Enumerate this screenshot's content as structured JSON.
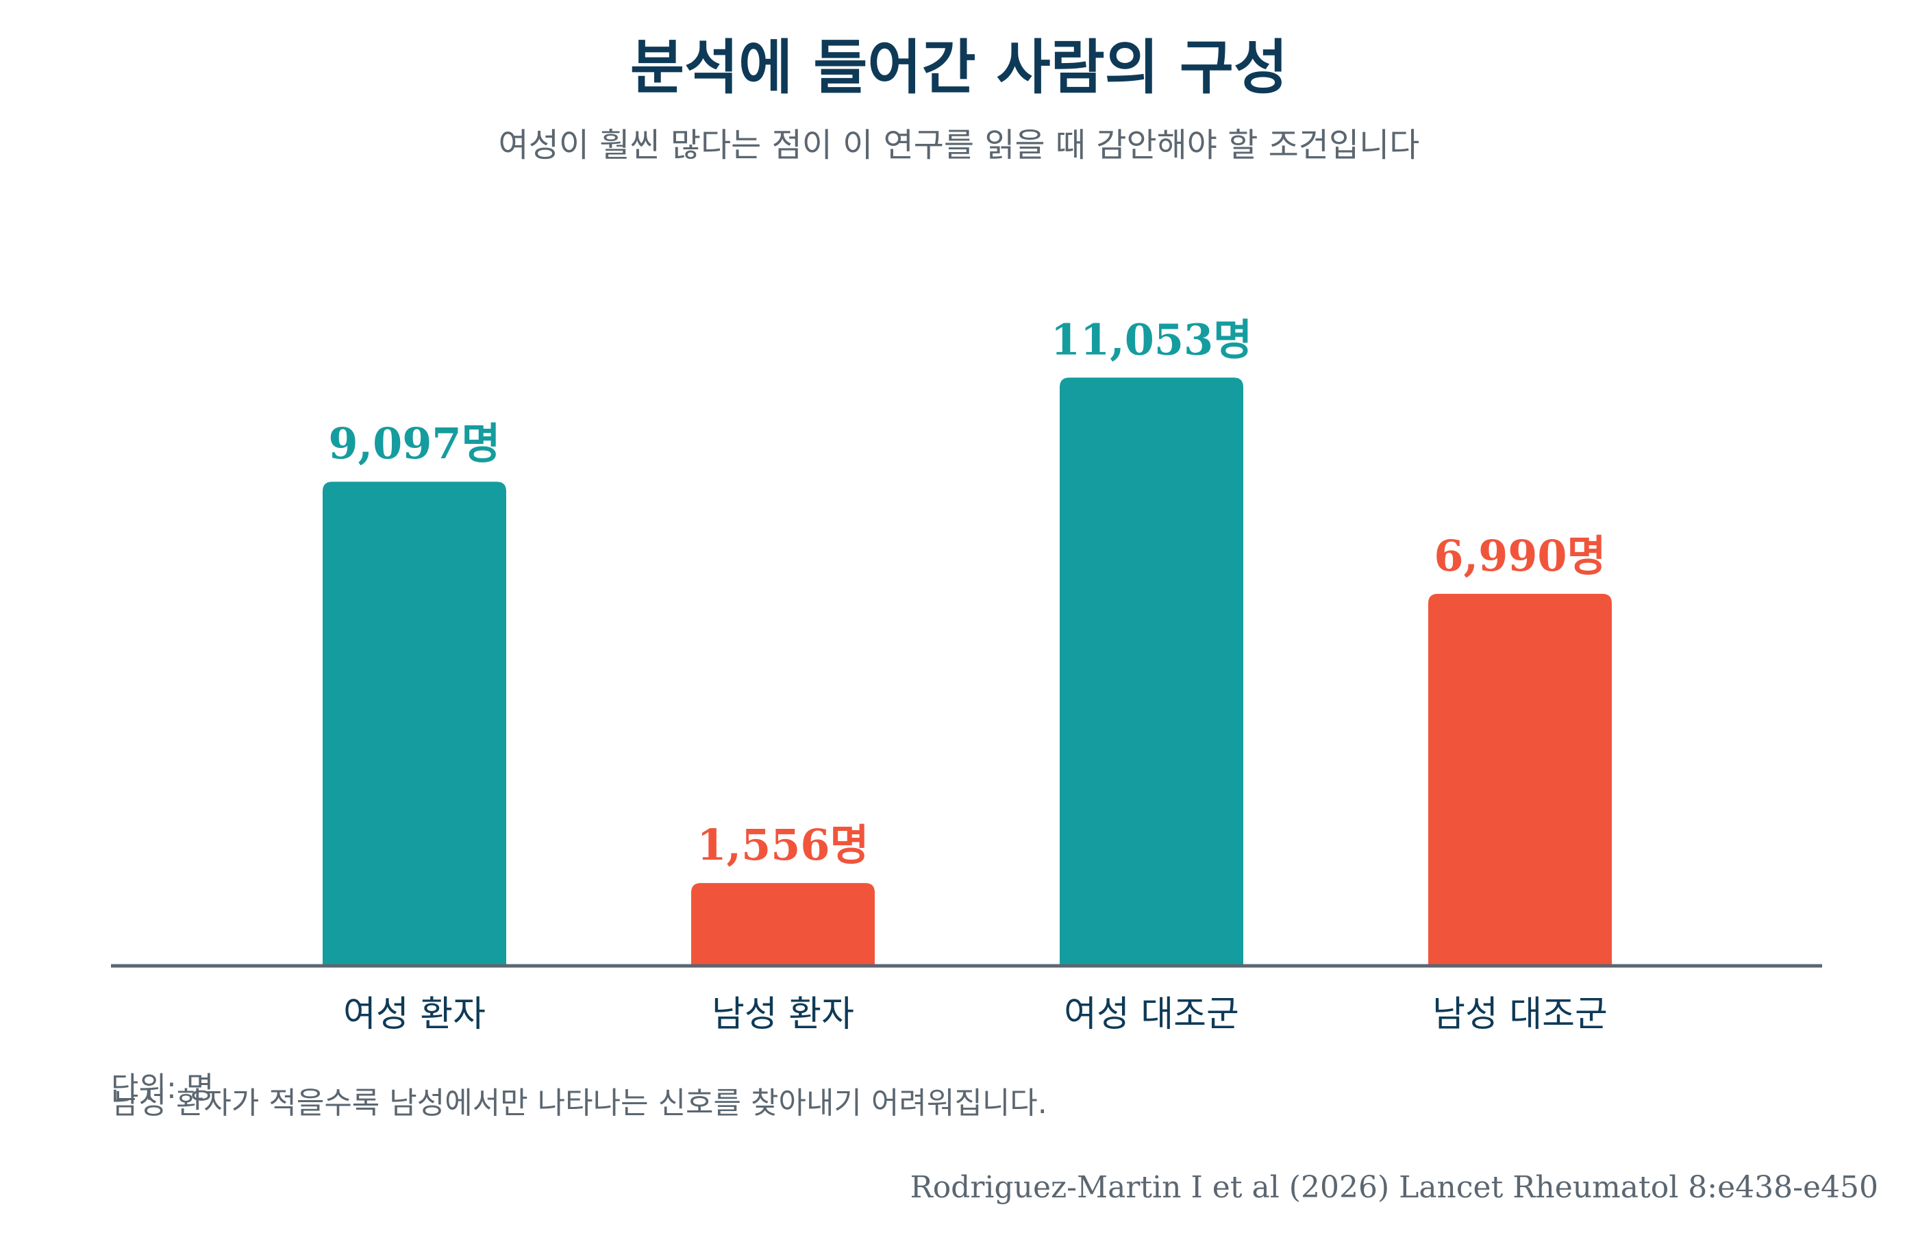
{
  "chart_data": {
    "type": "bar",
    "title": "분석에 들어간 사람의 구성",
    "subtitle": "여성이 훨씬 많다는 점이 이 연구를 읽을 때 감안해야 할 조건입니다",
    "categories": [
      "여성 환자",
      "남성 환자",
      "여성 대조군",
      "남성 대조군"
    ],
    "values": [
      9097,
      1556,
      11053,
      6990
    ],
    "value_labels": [
      "9,097명",
      "1,556명",
      "11,053명",
      "6,990명"
    ],
    "bar_colors": [
      "#159c9e",
      "#f0553c",
      "#159c9e",
      "#f0553c"
    ],
    "ylim": [
      0,
      13000
    ],
    "grid": false,
    "legend": "none",
    "unit_note": "단위: 명",
    "footnote": "남성 환자가 적을수록 남성에서만 나타나는 신호를 찾아내기 어려워집니다.",
    "source": "Rodriguez-Martin I et al (2026) Lancet Rheumatol 8:e438-e450"
  },
  "colors": {
    "title": "#0e3a57",
    "muted": "#5b6670",
    "female": "#159c9e",
    "male": "#f0553c",
    "axis": "#5b6670"
  }
}
